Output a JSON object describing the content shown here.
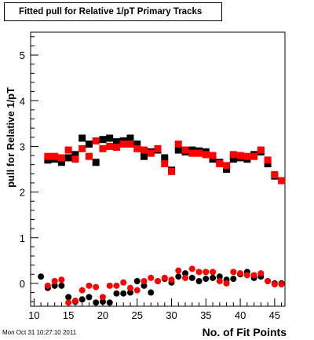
{
  "title": "Fitted pull for Relative 1/pT Primary Tracks",
  "footer": "Mon Oct 31 10:27:10 2011",
  "colors": {
    "black_series": "#000000",
    "red_series": "#ff0000"
  },
  "chart_data": {
    "type": "scatter",
    "title": "Fitted pull for Relative 1/pT Primary Tracks",
    "xlabel": "No. of Fit Points",
    "ylabel": "pull for Relative 1/pT",
    "xlim": [
      9.5,
      46.5
    ],
    "ylim": [
      -0.5,
      5.5
    ],
    "x_ticks": [
      "10",
      "15",
      "20",
      "25",
      "30",
      "35",
      "40",
      "45"
    ],
    "y_ticks": [
      "0",
      "1",
      "2",
      "3",
      "4",
      "5"
    ],
    "grid": false,
    "series": [
      {
        "color": "#000000",
        "marker": "square",
        "x": [
          12,
          13,
          14,
          15,
          16,
          17,
          18,
          19,
          20,
          21,
          22,
          23,
          24,
          25,
          26,
          27,
          28,
          29,
          30,
          31,
          32,
          33,
          34,
          35,
          36,
          37,
          38,
          39,
          40,
          41,
          42,
          43,
          44,
          45
        ],
        "y": [
          2.7,
          2.72,
          2.65,
          2.75,
          2.82,
          3.18,
          3.05,
          2.65,
          3.15,
          3.18,
          3.1,
          3.12,
          3.18,
          3.05,
          2.78,
          2.88,
          2.92,
          2.75,
          2.48,
          2.92,
          2.88,
          2.92,
          2.9,
          2.88,
          2.72,
          2.65,
          2.5,
          2.72,
          2.75,
          2.72,
          2.82,
          2.88,
          2.62,
          2.35
        ]
      },
      {
        "color": "#000000",
        "marker": "circle",
        "x": [
          11,
          12,
          13,
          14,
          15,
          16,
          17,
          18,
          19,
          20,
          21,
          22,
          23,
          24,
          25,
          26,
          27,
          28,
          29,
          30,
          31,
          32,
          33,
          34,
          35,
          36,
          37,
          38,
          39,
          40,
          41,
          42,
          43,
          44,
          45,
          46
        ],
        "y": [
          0.15,
          -0.1,
          -0.05,
          -0.05,
          -0.3,
          -0.4,
          -0.35,
          -0.3,
          -0.42,
          -0.4,
          -0.42,
          -0.22,
          -0.22,
          -0.2,
          0.05,
          -0.05,
          -0.2,
          0.05,
          0.1,
          0.02,
          0.15,
          0.22,
          0.12,
          0.05,
          0.1,
          0.12,
          0.15,
          0.08,
          0.1,
          0.2,
          0.25,
          0.12,
          0.15,
          0.05,
          0.0,
          0.0
        ]
      },
      {
        "color": "#ff0000",
        "marker": "square",
        "x": [
          12,
          13,
          14,
          15,
          16,
          17,
          18,
          19,
          20,
          21,
          22,
          23,
          24,
          25,
          26,
          27,
          28,
          29,
          30,
          31,
          32,
          33,
          34,
          35,
          36,
          37,
          38,
          39,
          40,
          41,
          42,
          43,
          44,
          45,
          46
        ],
        "y": [
          2.78,
          2.78,
          2.75,
          2.92,
          2.72,
          2.95,
          2.78,
          3.12,
          2.95,
          3.0,
          2.98,
          3.05,
          3.05,
          2.95,
          2.92,
          2.85,
          2.95,
          2.62,
          2.45,
          3.05,
          2.92,
          2.85,
          2.85,
          2.82,
          2.8,
          2.62,
          2.58,
          2.82,
          2.8,
          2.78,
          2.78,
          2.92,
          2.7,
          2.38,
          2.25
        ]
      },
      {
        "color": "#ff0000",
        "marker": "circle",
        "x": [
          12,
          13,
          14,
          15,
          16,
          17,
          18,
          19,
          20,
          21,
          22,
          23,
          24,
          25,
          26,
          27,
          28,
          29,
          30,
          31,
          32,
          33,
          34,
          35,
          36,
          37,
          38,
          39,
          40,
          41,
          42,
          43,
          44,
          45,
          46
        ],
        "y": [
          -0.05,
          0.05,
          0.08,
          -0.42,
          -0.38,
          -0.15,
          -0.05,
          -0.08,
          -0.3,
          -0.05,
          -0.05,
          0.02,
          -0.1,
          -0.15,
          0.05,
          0.12,
          0.05,
          0.12,
          0.08,
          0.28,
          0.12,
          0.32,
          0.25,
          0.25,
          0.25,
          0.05,
          0.0,
          0.25,
          0.22,
          0.18,
          0.18,
          0.22,
          0.05,
          -0.02,
          -0.02
        ]
      }
    ]
  }
}
